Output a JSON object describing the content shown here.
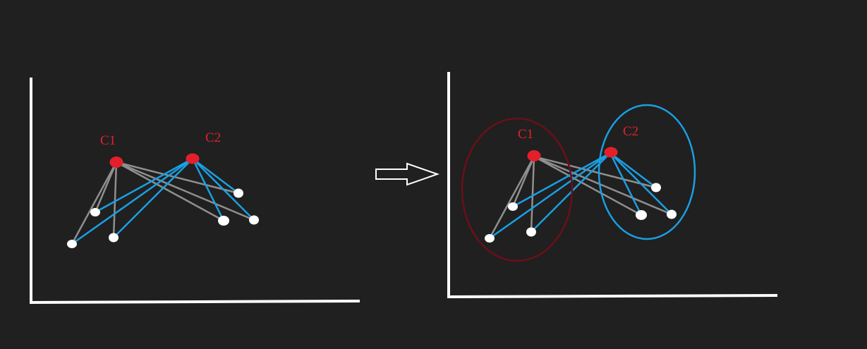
{
  "colors": {
    "background": "#202020",
    "axis": "#ffffff",
    "point": "#ffffff",
    "centroid": "#e3202a",
    "label": "#e3202a",
    "line_c1": "#8f8f8f",
    "line_c2": "#1a9fe3",
    "cluster_c1": "#6b0f18",
    "cluster_c2": "#1a9fe3",
    "arrow": "#ffffff"
  },
  "icons": {
    "arrow": "right-arrow-icon"
  },
  "before": {
    "centroids": [
      {
        "id": "c1",
        "label": "C1"
      },
      {
        "id": "c2",
        "label": "C2"
      }
    ]
  },
  "after": {
    "centroids": [
      {
        "id": "c1",
        "label": "C1"
      },
      {
        "id": "c2",
        "label": "C2"
      }
    ]
  }
}
